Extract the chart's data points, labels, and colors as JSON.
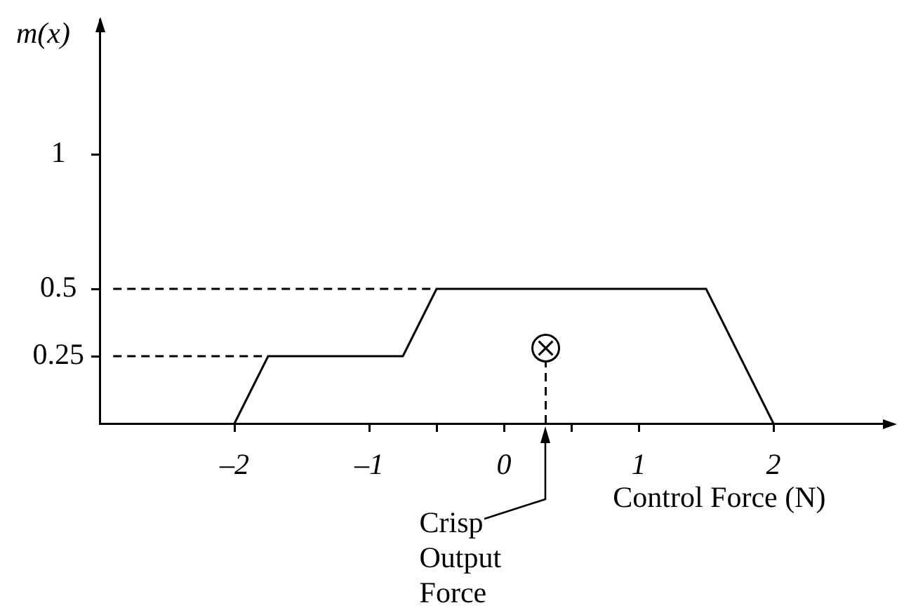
{
  "chart_data": {
    "type": "line",
    "xlabel": "Control Force (N)",
    "ylabel": "m(x)",
    "xlim": [
      -3,
      2.88
    ],
    "ylim": [
      0,
      1.5
    ],
    "xticks": [
      {
        "value": -2,
        "label": "–2"
      },
      {
        "value": -1,
        "label": "–1"
      },
      {
        "value": -0.5,
        "label": null
      },
      0,
      {
        "value": 0.5,
        "label": null
      },
      1,
      2
    ],
    "yticks": [
      0.25,
      0.5,
      1
    ],
    "marker": "none",
    "series": [
      {
        "color": "#000000",
        "x": [
          -2,
          -1.75,
          -0.75,
          -0.5,
          1.5,
          2
        ],
        "values": [
          0,
          0.25,
          0.25,
          0.5,
          0.5,
          0
        ]
      },
      {
        "color": "#000000",
        "x": [
          -2.9,
          -1.75
        ],
        "values": [
          0.25,
          0.25
        ],
        "line_style": "dashed"
      },
      {
        "color": "#000000",
        "x": [
          -2.9,
          -0.5
        ],
        "values": [
          0.5,
          0.5
        ],
        "line_style": "dashed"
      },
      {
        "color": "#000000",
        "x": [
          0.31,
          0.31
        ],
        "values": [
          0,
          0.23
        ],
        "line_style": "dashed"
      },
      {
        "type": "scatter",
        "color": "#000000",
        "x": [
          0.31
        ],
        "values": [
          0.28
        ],
        "marker": "circle"
      }
    ],
    "annotations": [
      "Crisp Output Force"
    ]
  }
}
